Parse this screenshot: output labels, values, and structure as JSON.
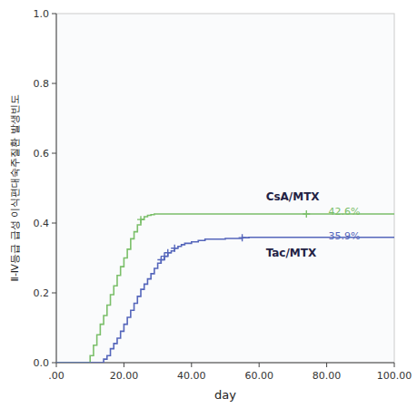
{
  "chart_data": {
    "type": "step",
    "xlabel": "day",
    "ylabel": "Ⅱ-Ⅳ등급 급성 이식편대숙주질환 발생빈도",
    "xlim": [
      0,
      100
    ],
    "ylim": [
      0,
      1.0
    ],
    "xticks": [
      {
        "value": 0,
        "label": ".00"
      },
      {
        "value": 20,
        "label": "20.00"
      },
      {
        "value": 40,
        "label": "40.00"
      },
      {
        "value": 60,
        "label": "60.00"
      },
      {
        "value": 80,
        "label": "80.00"
      },
      {
        "value": 100,
        "label": "100.00"
      }
    ],
    "yticks": [
      {
        "value": 0.0,
        "label": "0.0"
      },
      0.2,
      0.4,
      0.6,
      0.8,
      {
        "value": 1.0,
        "label": "1.0"
      }
    ],
    "grid": false,
    "series": [
      {
        "name": "CsA/MTX",
        "color": "#7bbf6a",
        "marker": "plus",
        "x": [
          0,
          10,
          10,
          11,
          12,
          13,
          14,
          15,
          16,
          17,
          18,
          19,
          20,
          21,
          22,
          23,
          24,
          25,
          26,
          27,
          28,
          29,
          30,
          100
        ],
        "values": [
          0.0,
          0.0,
          0.02,
          0.05,
          0.08,
          0.11,
          0.135,
          0.165,
          0.195,
          0.22,
          0.25,
          0.275,
          0.3,
          0.325,
          0.355,
          0.375,
          0.395,
          0.41,
          0.418,
          0.422,
          0.424,
          0.426,
          0.426,
          0.426
        ],
        "censor_x": [
          25,
          74
        ],
        "censor_values": [
          0.41,
          0.426
        ],
        "label_x": 62,
        "label_y": 0.475,
        "annotation": {
          "text": "42.6%",
          "x": 80.5,
          "y": 0.433
        }
      },
      {
        "name": "Tac/MTX",
        "color": "#5566bb",
        "marker": "plus",
        "x": [
          0,
          13,
          14,
          15,
          16,
          17,
          18,
          19,
          20,
          21,
          22,
          23,
          24,
          25,
          26,
          27,
          28,
          29,
          30,
          31,
          32,
          33,
          34,
          35,
          36,
          37,
          38,
          40,
          42,
          44,
          50,
          55,
          57,
          100
        ],
        "values": [
          0.0,
          0.0,
          0.01,
          0.02,
          0.04,
          0.055,
          0.07,
          0.09,
          0.11,
          0.13,
          0.15,
          0.17,
          0.19,
          0.21,
          0.225,
          0.24,
          0.255,
          0.27,
          0.285,
          0.295,
          0.305,
          0.315,
          0.32,
          0.328,
          0.333,
          0.338,
          0.342,
          0.346,
          0.35,
          0.354,
          0.356,
          0.358,
          0.359,
          0.359
        ],
        "censor_x": [
          35,
          55,
          31,
          32,
          33
        ],
        "censor_values": [
          0.328,
          0.358,
          0.295,
          0.305,
          0.315
        ],
        "label_x": 62,
        "label_y": 0.315,
        "annotation": {
          "text": "35.9%",
          "x": 80.5,
          "y": 0.362
        }
      }
    ]
  }
}
